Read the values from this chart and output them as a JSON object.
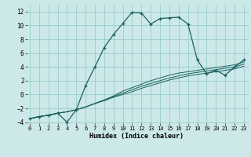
{
  "xlabel": "Humidex (Indice chaleur)",
  "bg_color": "#cce8e8",
  "grid_color": "#99cccc",
  "line_color": "#1a6060",
  "xlim": [
    -0.5,
    23.5
  ],
  "ylim": [
    -4.5,
    13.0
  ],
  "xticks": [
    0,
    1,
    2,
    3,
    4,
    5,
    6,
    7,
    8,
    9,
    10,
    11,
    12,
    13,
    14,
    15,
    16,
    17,
    18,
    19,
    20,
    21,
    22,
    23
  ],
  "yticks": [
    -4,
    -2,
    0,
    2,
    4,
    6,
    8,
    10,
    12
  ],
  "main_x": [
    0,
    1,
    2,
    3,
    4,
    5,
    6,
    7,
    8,
    9,
    10,
    11,
    12,
    13,
    14,
    15,
    16,
    17,
    18,
    19,
    20,
    21,
    22,
    23
  ],
  "main_y": [
    -3.5,
    -3.2,
    -3.0,
    -2.7,
    -4.0,
    -2.2,
    1.3,
    4.0,
    6.8,
    8.7,
    10.3,
    11.9,
    11.8,
    10.2,
    11.0,
    11.1,
    11.2,
    10.2,
    5.0,
    3.0,
    3.5,
    2.8,
    4.0,
    5.0
  ],
  "line2_x": [
    0,
    1,
    2,
    3,
    4,
    5,
    6,
    7,
    8,
    9,
    10,
    11,
    12,
    13,
    14,
    15,
    16,
    17,
    18,
    19,
    20,
    21,
    22,
    23
  ],
  "line2_y": [
    -3.5,
    -3.2,
    -3.0,
    -2.7,
    -2.5,
    -2.2,
    -1.8,
    -1.3,
    -0.8,
    -0.2,
    0.5,
    1.0,
    1.5,
    2.0,
    2.4,
    2.8,
    3.1,
    3.3,
    3.5,
    3.7,
    3.9,
    4.1,
    4.3,
    4.7
  ],
  "line3_x": [
    0,
    1,
    2,
    3,
    4,
    5,
    6,
    7,
    8,
    9,
    10,
    11,
    12,
    13,
    14,
    15,
    16,
    17,
    18,
    19,
    20,
    21,
    22,
    23
  ],
  "line3_y": [
    -3.5,
    -3.2,
    -3.0,
    -2.7,
    -2.5,
    -2.2,
    -1.8,
    -1.3,
    -0.8,
    -0.3,
    0.2,
    0.7,
    1.2,
    1.6,
    2.0,
    2.4,
    2.7,
    3.0,
    3.2,
    3.4,
    3.6,
    3.8,
    4.0,
    4.4
  ],
  "line4_x": [
    0,
    1,
    2,
    3,
    4,
    5,
    6,
    7,
    8,
    9,
    10,
    11,
    12,
    13,
    14,
    15,
    16,
    17,
    18,
    19,
    20,
    21,
    22,
    23
  ],
  "line4_y": [
    -3.5,
    -3.2,
    -3.0,
    -2.7,
    -2.5,
    -2.2,
    -1.8,
    -1.3,
    -0.9,
    -0.4,
    0.0,
    0.4,
    0.9,
    1.3,
    1.7,
    2.1,
    2.4,
    2.7,
    2.9,
    3.1,
    3.3,
    3.5,
    3.7,
    4.1
  ]
}
